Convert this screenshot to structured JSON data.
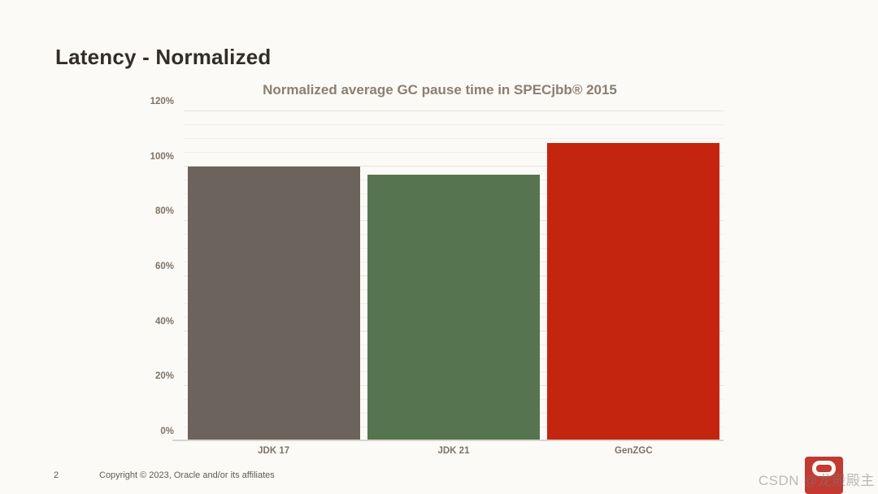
{
  "slide": {
    "title": "Latency - Normalized"
  },
  "chart_data": {
    "type": "bar",
    "title": "Normalized average GC pause time in SPECjbb® 2015",
    "categories": [
      "JDK 17",
      "JDK 21",
      "GenZGC"
    ],
    "values": [
      100,
      97,
      108.5
    ],
    "unit": "%",
    "bar_colors": [
      "#6B635C",
      "#567450",
      "#C3250F"
    ],
    "xlabel": "",
    "ylabel": "",
    "ylim": [
      0,
      120
    ],
    "y_major_step": 20,
    "y_minor_step": 5,
    "y_tick_labels": [
      "0%",
      "20%",
      "40%",
      "60%",
      "80%",
      "100%",
      "120%"
    ],
    "grid": "horizontal gridlines on, minor every 5%, major every 20%",
    "legend": "none"
  },
  "footer": {
    "page_number": "2",
    "copyright": "Copyright © 2023, Oracle and/or its affiliates"
  },
  "watermark": {
    "text": "CSDN @龙殿殿主",
    "logo_color": "#C23A31"
  },
  "colors": {
    "background": "#FCFAF6",
    "heading_text": "#322D29",
    "chart_title_text": "#8B7E73",
    "axis_text": "#7D7266",
    "footer_text": "#5E5954",
    "gridline_major": "#E7E3DC",
    "gridline_minor": "#F2EFE9"
  }
}
